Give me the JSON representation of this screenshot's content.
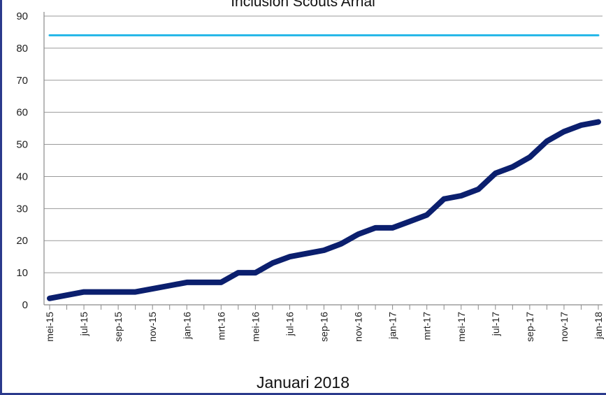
{
  "chart_data": {
    "type": "line",
    "title": "Inclusion Scouts Arhal",
    "subtitle": "Januari 2018",
    "xlabel": "",
    "ylabel": "",
    "ylim": [
      0,
      90
    ],
    "yticks": [
      0,
      10,
      20,
      30,
      40,
      50,
      60,
      70,
      80,
      90
    ],
    "grid": true,
    "legend": "none",
    "x_labels": [
      "mei-15",
      "jul-15",
      "sep-15",
      "nov-15",
      "jan-16",
      "mrt-16",
      "mei-16",
      "jul-16",
      "sep-16",
      "nov-16",
      "jan-17",
      "mrt-17",
      "mei-17",
      "jul-17",
      "sep-17",
      "nov-17",
      "jan-18"
    ],
    "x_label_every": 2,
    "series": [
      {
        "color": "#0b1f6e",
        "values": [
          2,
          3,
          4,
          4,
          4,
          4,
          5,
          6,
          7,
          7,
          7,
          10,
          10,
          13,
          15,
          16,
          17,
          19,
          22,
          24,
          24,
          26,
          28,
          33,
          34,
          36,
          41,
          43,
          46,
          51,
          54,
          56,
          57
        ]
      },
      {
        "color": "#28b8e8",
        "values": [
          84,
          84,
          84,
          84,
          84,
          84,
          84,
          84,
          84,
          84,
          84,
          84,
          84,
          84,
          84,
          84,
          84,
          84,
          84,
          84,
          84,
          84,
          84,
          84,
          84,
          84,
          84,
          84,
          84,
          84,
          84,
          84,
          84
        ]
      }
    ]
  }
}
